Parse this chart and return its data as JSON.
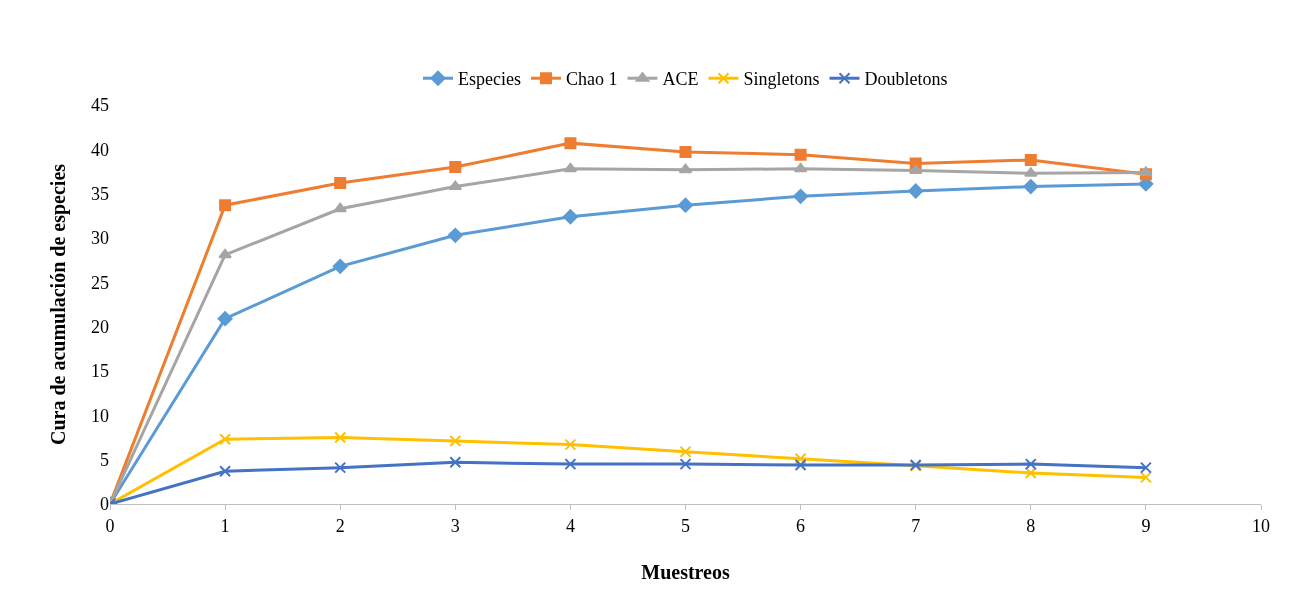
{
  "chart_data": {
    "type": "line",
    "xlabel": "Muestreos",
    "ylabel": "Cura de acumulación de especies",
    "x": [
      0,
      1,
      2,
      3,
      4,
      5,
      6,
      7,
      8,
      9
    ],
    "xlim": [
      0,
      10
    ],
    "xticks": [
      0,
      1,
      2,
      3,
      4,
      5,
      6,
      7,
      8,
      9,
      10
    ],
    "ylim": [
      0,
      45
    ],
    "yticks": [
      0,
      5,
      10,
      15,
      20,
      25,
      30,
      35,
      40,
      45
    ],
    "grid": false,
    "legend": "top",
    "series": [
      {
        "name": "Especies",
        "color": "#5b9bd5",
        "marker": "diamond",
        "values": [
          0,
          20.9,
          26.8,
          30.3,
          32.4,
          33.7,
          34.7,
          35.3,
          35.8,
          36.1
        ]
      },
      {
        "name": "Chao 1",
        "color": "#ed7d31",
        "marker": "square",
        "values": [
          0,
          33.7,
          36.2,
          38.0,
          40.7,
          39.7,
          39.4,
          38.4,
          38.8,
          37.2
        ]
      },
      {
        "name": "ACE",
        "color": "#a5a5a5",
        "marker": "triangle",
        "values": [
          0,
          28.1,
          33.3,
          35.8,
          37.8,
          37.7,
          37.8,
          37.6,
          37.3,
          37.4
        ]
      },
      {
        "name": "Singletons",
        "color": "#ffc000",
        "marker": "cross",
        "values": [
          0,
          7.3,
          7.5,
          7.1,
          6.7,
          5.9,
          5.1,
          4.3,
          3.5,
          3.0
        ]
      },
      {
        "name": "Doubletons",
        "color": "#4472c4",
        "marker": "cross",
        "values": [
          0,
          3.7,
          4.1,
          4.7,
          4.5,
          4.5,
          4.4,
          4.4,
          4.5,
          4.1
        ]
      }
    ]
  }
}
